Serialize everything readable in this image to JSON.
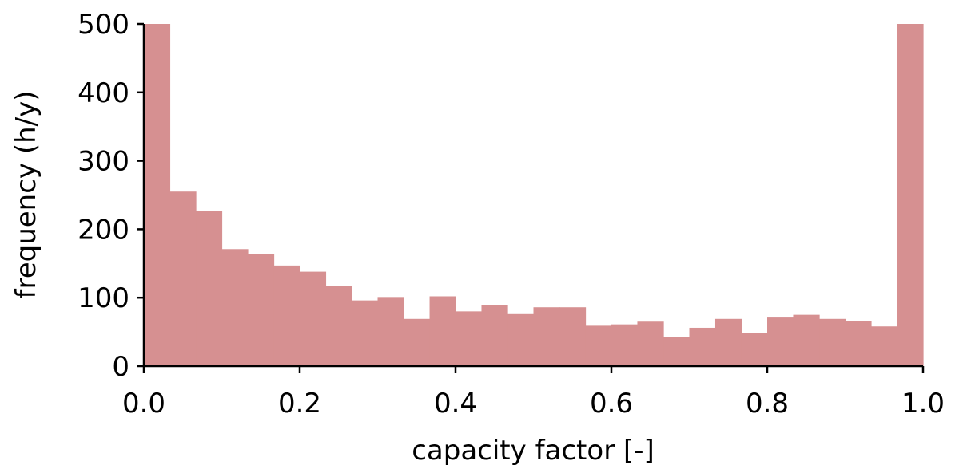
{
  "chart_data": {
    "type": "bar",
    "title": "",
    "xlabel": "capacity factor [-]",
    "ylabel": "frequency (h/y)",
    "xlim": [
      0.0,
      1.0
    ],
    "ylim": [
      0,
      500
    ],
    "x_ticks": [
      "0.0",
      "0.2",
      "0.4",
      "0.6",
      "0.8",
      "1.0"
    ],
    "y_ticks": [
      "0",
      "100",
      "200",
      "300",
      "400",
      "500"
    ],
    "grid": false,
    "bin_width": 0.0333,
    "bin_edges": [
      0.0,
      0.0333,
      0.0667,
      0.1,
      0.1333,
      0.1667,
      0.2,
      0.2333,
      0.2667,
      0.3,
      0.3333,
      0.3667,
      0.4,
      0.4333,
      0.4667,
      0.5,
      0.5333,
      0.5667,
      0.6,
      0.6333,
      0.6667,
      0.7,
      0.7333,
      0.7667,
      0.8,
      0.8333,
      0.8667,
      0.9,
      0.9333,
      0.9667,
      1.0
    ],
    "values": [
      500,
      255,
      227,
      171,
      164,
      147,
      138,
      117,
      96,
      101,
      69,
      102,
      80,
      89,
      76,
      86,
      86,
      59,
      61,
      65,
      42,
      56,
      69,
      48,
      71,
      75,
      69,
      66,
      58,
      500
    ],
    "bar_color": "#d69091"
  }
}
